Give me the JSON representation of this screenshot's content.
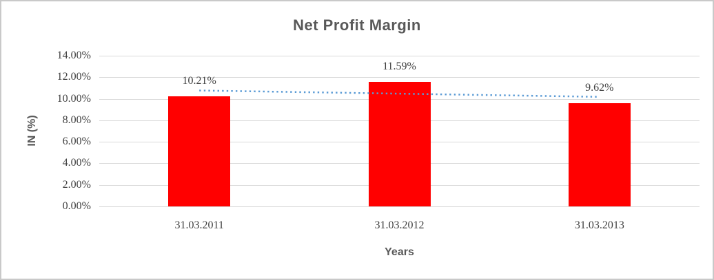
{
  "window": {
    "background": "#ffffff",
    "border_color": "#c9c9c9"
  },
  "chart_data": {
    "type": "bar",
    "title": "Net Profit Margin",
    "xlabel": "Years",
    "ylabel": "IN (%)",
    "categories": [
      "31.03.2011",
      "31.03.2012",
      "31.03.2013"
    ],
    "values": [
      10.21,
      11.59,
      9.62
    ],
    "data_labels": [
      "10.21%",
      "11.59%",
      "9.62%"
    ],
    "ylim": [
      0,
      14
    ],
    "ytick_step": 2,
    "ytick_labels": [
      "14.00%",
      "12.00%",
      "10.00%",
      "8.00%",
      "6.00%",
      "4.00%",
      "2.00%",
      "0.00%"
    ],
    "grid": true,
    "legend": false,
    "bar_color": "#ff0000",
    "gridline_color": "#d9d9d9",
    "title_color": "#595959",
    "axis_title_color": "#595959",
    "tick_color": "#404040",
    "trendline": {
      "type": "linear",
      "style": "dotted",
      "color": "#5b9bd5",
      "start_value": 10.77,
      "end_value": 10.18
    }
  }
}
